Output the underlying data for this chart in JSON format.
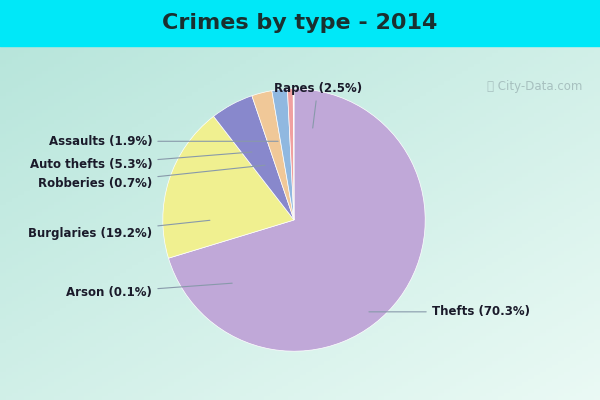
{
  "title": "Crimes by type - 2014",
  "title_fontsize": 16,
  "title_fontweight": "bold",
  "labels": [
    "Thefts",
    "Burglaries",
    "Auto thefts",
    "Rapes",
    "Assaults",
    "Robberies",
    "Arson"
  ],
  "values": [
    70.3,
    19.2,
    5.3,
    2.5,
    1.9,
    0.7,
    0.1
  ],
  "colors": [
    "#c0a8d8",
    "#f0f090",
    "#8888cc",
    "#f0c898",
    "#90b8e0",
    "#f0a0a0",
    "#b8d8b0"
  ],
  "background_cyan": "#00e8f8",
  "title_color": "#1a3030",
  "label_color": "#1a1a2a",
  "watermark_color": "#a0b8b8",
  "startangle": 90,
  "annotation_fontsize": 8.5
}
